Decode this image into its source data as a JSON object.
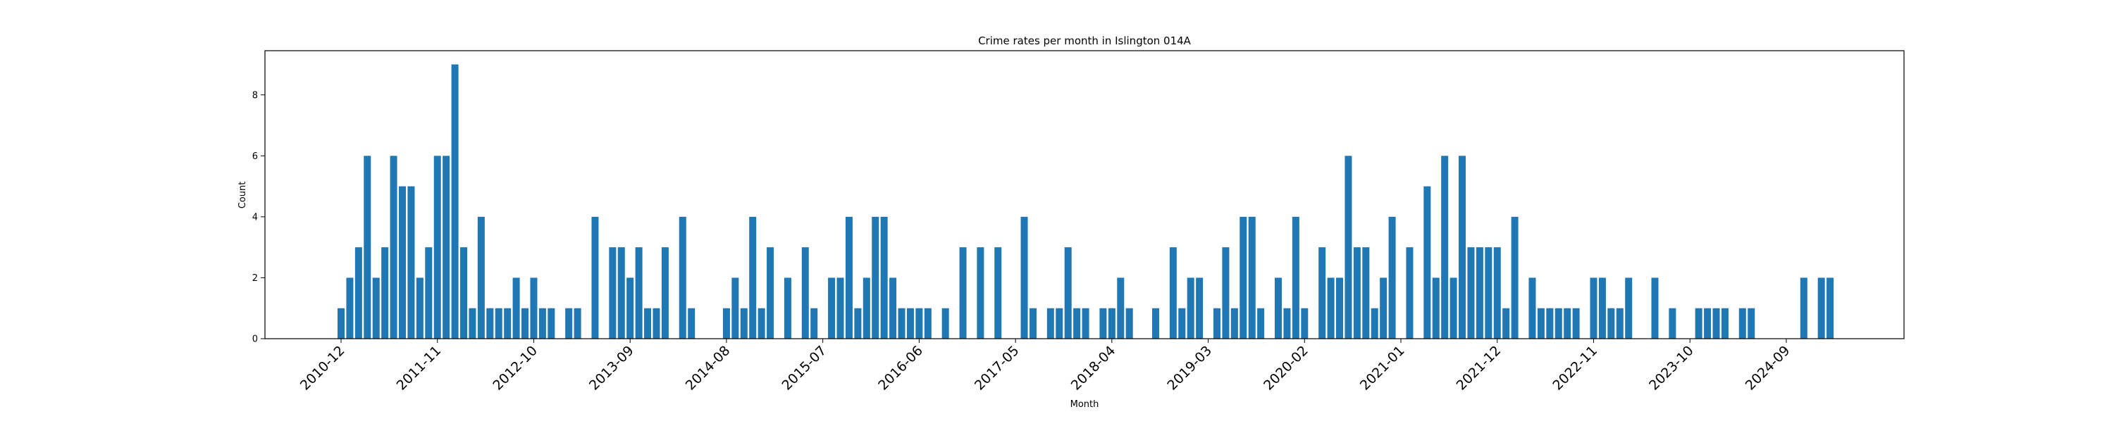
{
  "chart_data": {
    "type": "bar",
    "title": "Crime rates per month in Islington 014A",
    "xlabel": "Month",
    "ylabel": "Count",
    "ylim": [
      0,
      9.45
    ],
    "yticks": [
      0,
      2,
      4,
      6,
      8
    ],
    "grid": false,
    "bar_color": "#1f77b4",
    "x_tick_labels": [
      "2010-12",
      "2011-11",
      "2012-10",
      "2013-09",
      "2014-08",
      "2015-07",
      "2016-06",
      "2017-05",
      "2018-04",
      "2019-03",
      "2020-02",
      "2021-01",
      "2021-12",
      "2022-11",
      "2023-10",
      "2024-09"
    ],
    "points": [
      {
        "x": "2010-12",
        "y": 1
      },
      {
        "x": "2011-01",
        "y": 2
      },
      {
        "x": "2011-02",
        "y": 3
      },
      {
        "x": "2011-03",
        "y": 6
      },
      {
        "x": "2011-04",
        "y": 2
      },
      {
        "x": "2011-05",
        "y": 3
      },
      {
        "x": "2011-06",
        "y": 6
      },
      {
        "x": "2011-07",
        "y": 5
      },
      {
        "x": "2011-08",
        "y": 5
      },
      {
        "x": "2011-09",
        "y": 2
      },
      {
        "x": "2011-10",
        "y": 3
      },
      {
        "x": "2011-11",
        "y": 6
      },
      {
        "x": "2011-12",
        "y": 6
      },
      {
        "x": "2012-01",
        "y": 9
      },
      {
        "x": "2012-02",
        "y": 3
      },
      {
        "x": "2012-03",
        "y": 1
      },
      {
        "x": "2012-04",
        "y": 4
      },
      {
        "x": "2012-05",
        "y": 1
      },
      {
        "x": "2012-06",
        "y": 1
      },
      {
        "x": "2012-07",
        "y": 1
      },
      {
        "x": "2012-08",
        "y": 2
      },
      {
        "x": "2012-09",
        "y": 1
      },
      {
        "x": "2012-10",
        "y": 2
      },
      {
        "x": "2012-11",
        "y": 1
      },
      {
        "x": "2012-12",
        "y": 1
      },
      {
        "x": "2013-02",
        "y": 1
      },
      {
        "x": "2013-03",
        "y": 1
      },
      {
        "x": "2013-05",
        "y": 4
      },
      {
        "x": "2013-07",
        "y": 3
      },
      {
        "x": "2013-08",
        "y": 3
      },
      {
        "x": "2013-09",
        "y": 2
      },
      {
        "x": "2013-10",
        "y": 3
      },
      {
        "x": "2013-11",
        "y": 1
      },
      {
        "x": "2013-12",
        "y": 1
      },
      {
        "x": "2014-01",
        "y": 3
      },
      {
        "x": "2014-03",
        "y": 4
      },
      {
        "x": "2014-04",
        "y": 1
      },
      {
        "x": "2014-08",
        "y": 1
      },
      {
        "x": "2014-09",
        "y": 2
      },
      {
        "x": "2014-10",
        "y": 1
      },
      {
        "x": "2014-11",
        "y": 4
      },
      {
        "x": "2014-12",
        "y": 1
      },
      {
        "x": "2015-01",
        "y": 3
      },
      {
        "x": "2015-03",
        "y": 2
      },
      {
        "x": "2015-05",
        "y": 3
      },
      {
        "x": "2015-06",
        "y": 1
      },
      {
        "x": "2015-08",
        "y": 2
      },
      {
        "x": "2015-09",
        "y": 2
      },
      {
        "x": "2015-10",
        "y": 4
      },
      {
        "x": "2015-11",
        "y": 1
      },
      {
        "x": "2015-12",
        "y": 2
      },
      {
        "x": "2016-01",
        "y": 4
      },
      {
        "x": "2016-02",
        "y": 4
      },
      {
        "x": "2016-03",
        "y": 2
      },
      {
        "x": "2016-04",
        "y": 1
      },
      {
        "x": "2016-05",
        "y": 1
      },
      {
        "x": "2016-06",
        "y": 1
      },
      {
        "x": "2016-07",
        "y": 1
      },
      {
        "x": "2016-09",
        "y": 1
      },
      {
        "x": "2016-11",
        "y": 3
      },
      {
        "x": "2017-01",
        "y": 3
      },
      {
        "x": "2017-03",
        "y": 3
      },
      {
        "x": "2017-06",
        "y": 4
      },
      {
        "x": "2017-07",
        "y": 1
      },
      {
        "x": "2017-09",
        "y": 1
      },
      {
        "x": "2017-10",
        "y": 1
      },
      {
        "x": "2017-11",
        "y": 3
      },
      {
        "x": "2017-12",
        "y": 1
      },
      {
        "x": "2018-01",
        "y": 1
      },
      {
        "x": "2018-03",
        "y": 1
      },
      {
        "x": "2018-04",
        "y": 1
      },
      {
        "x": "2018-05",
        "y": 2
      },
      {
        "x": "2018-06",
        "y": 1
      },
      {
        "x": "2018-09",
        "y": 1
      },
      {
        "x": "2018-11",
        "y": 3
      },
      {
        "x": "2018-12",
        "y": 1
      },
      {
        "x": "2019-01",
        "y": 2
      },
      {
        "x": "2019-02",
        "y": 2
      },
      {
        "x": "2019-04",
        "y": 1
      },
      {
        "x": "2019-05",
        "y": 3
      },
      {
        "x": "2019-06",
        "y": 1
      },
      {
        "x": "2019-07",
        "y": 4
      },
      {
        "x": "2019-08",
        "y": 4
      },
      {
        "x": "2019-09",
        "y": 1
      },
      {
        "x": "2019-11",
        "y": 2
      },
      {
        "x": "2019-12",
        "y": 1
      },
      {
        "x": "2020-01",
        "y": 4
      },
      {
        "x": "2020-02",
        "y": 1
      },
      {
        "x": "2020-04",
        "y": 3
      },
      {
        "x": "2020-05",
        "y": 2
      },
      {
        "x": "2020-06",
        "y": 2
      },
      {
        "x": "2020-07",
        "y": 6
      },
      {
        "x": "2020-08",
        "y": 3
      },
      {
        "x": "2020-09",
        "y": 3
      },
      {
        "x": "2020-10",
        "y": 1
      },
      {
        "x": "2020-11",
        "y": 2
      },
      {
        "x": "2020-12",
        "y": 4
      },
      {
        "x": "2021-02",
        "y": 3
      },
      {
        "x": "2021-04",
        "y": 5
      },
      {
        "x": "2021-05",
        "y": 2
      },
      {
        "x": "2021-06",
        "y": 6
      },
      {
        "x": "2021-07",
        "y": 2
      },
      {
        "x": "2021-08",
        "y": 6
      },
      {
        "x": "2021-09",
        "y": 3
      },
      {
        "x": "2021-10",
        "y": 3
      },
      {
        "x": "2021-11",
        "y": 3
      },
      {
        "x": "2021-12",
        "y": 3
      },
      {
        "x": "2022-01",
        "y": 1
      },
      {
        "x": "2022-02",
        "y": 4
      },
      {
        "x": "2022-04",
        "y": 2
      },
      {
        "x": "2022-05",
        "y": 1
      },
      {
        "x": "2022-06",
        "y": 1
      },
      {
        "x": "2022-07",
        "y": 1
      },
      {
        "x": "2022-08",
        "y": 1
      },
      {
        "x": "2022-09",
        "y": 1
      },
      {
        "x": "2022-11",
        "y": 2
      },
      {
        "x": "2022-12",
        "y": 2
      },
      {
        "x": "2023-01",
        "y": 1
      },
      {
        "x": "2023-02",
        "y": 1
      },
      {
        "x": "2023-03",
        "y": 2
      },
      {
        "x": "2023-06",
        "y": 2
      },
      {
        "x": "2023-08",
        "y": 1
      },
      {
        "x": "2023-11",
        "y": 1
      },
      {
        "x": "2023-12",
        "y": 1
      },
      {
        "x": "2024-01",
        "y": 1
      },
      {
        "x": "2024-02",
        "y": 1
      },
      {
        "x": "2024-04",
        "y": 1
      },
      {
        "x": "2024-05",
        "y": 1
      },
      {
        "x": "2024-11",
        "y": 2
      },
      {
        "x": "2025-01",
        "y": 2
      },
      {
        "x": "2025-02",
        "y": 2
      }
    ]
  }
}
